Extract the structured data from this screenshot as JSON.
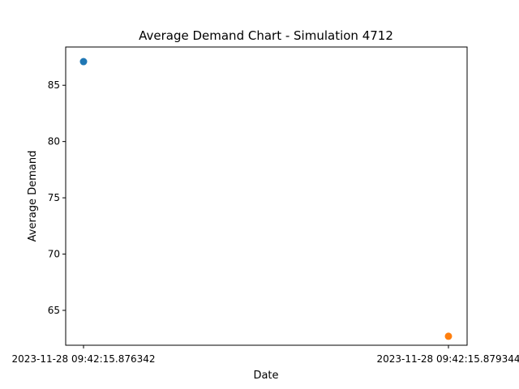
{
  "chart_data": {
    "type": "scatter",
    "title": "Average Demand Chart - Simulation 4712",
    "xlabel": "Date",
    "ylabel": "Average Demand",
    "x_type": "category",
    "x_ticks": [
      "2023-11-28 09:42:15.876342",
      "2023-11-28 09:42:15.879344"
    ],
    "y_ticks": [
      65,
      70,
      75,
      80,
      85
    ],
    "ylim": [
      61.9,
      88.4
    ],
    "grid": false,
    "series": [
      {
        "x": "2023-11-28 09:42:15.876342",
        "y": 87.1,
        "color": "#1f77b4"
      },
      {
        "x": "2023-11-28 09:42:15.879344",
        "y": 62.7,
        "color": "#ff7f0e"
      }
    ]
  }
}
